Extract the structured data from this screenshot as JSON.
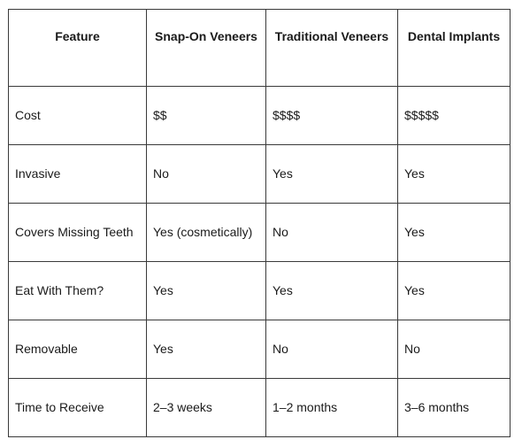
{
  "table": {
    "headers": [
      "Feature",
      "Snap-On Veneers",
      "Traditional Veneers",
      "Dental Implants"
    ],
    "rows": [
      [
        "Cost",
        "$$",
        "$$$$",
        "$$$$$"
      ],
      [
        "Invasive",
        "No",
        "Yes",
        "Yes"
      ],
      [
        "Covers Missing Teeth",
        "Yes (cosmetically)",
        "No",
        "Yes"
      ],
      [
        "Eat With Them?",
        "Yes",
        "Yes",
        "Yes"
      ],
      [
        "Removable",
        "Yes",
        "No",
        "No"
      ],
      [
        "Time to Receive",
        "2–3 weeks",
        "1–2 months",
        "3–6 months"
      ]
    ]
  }
}
